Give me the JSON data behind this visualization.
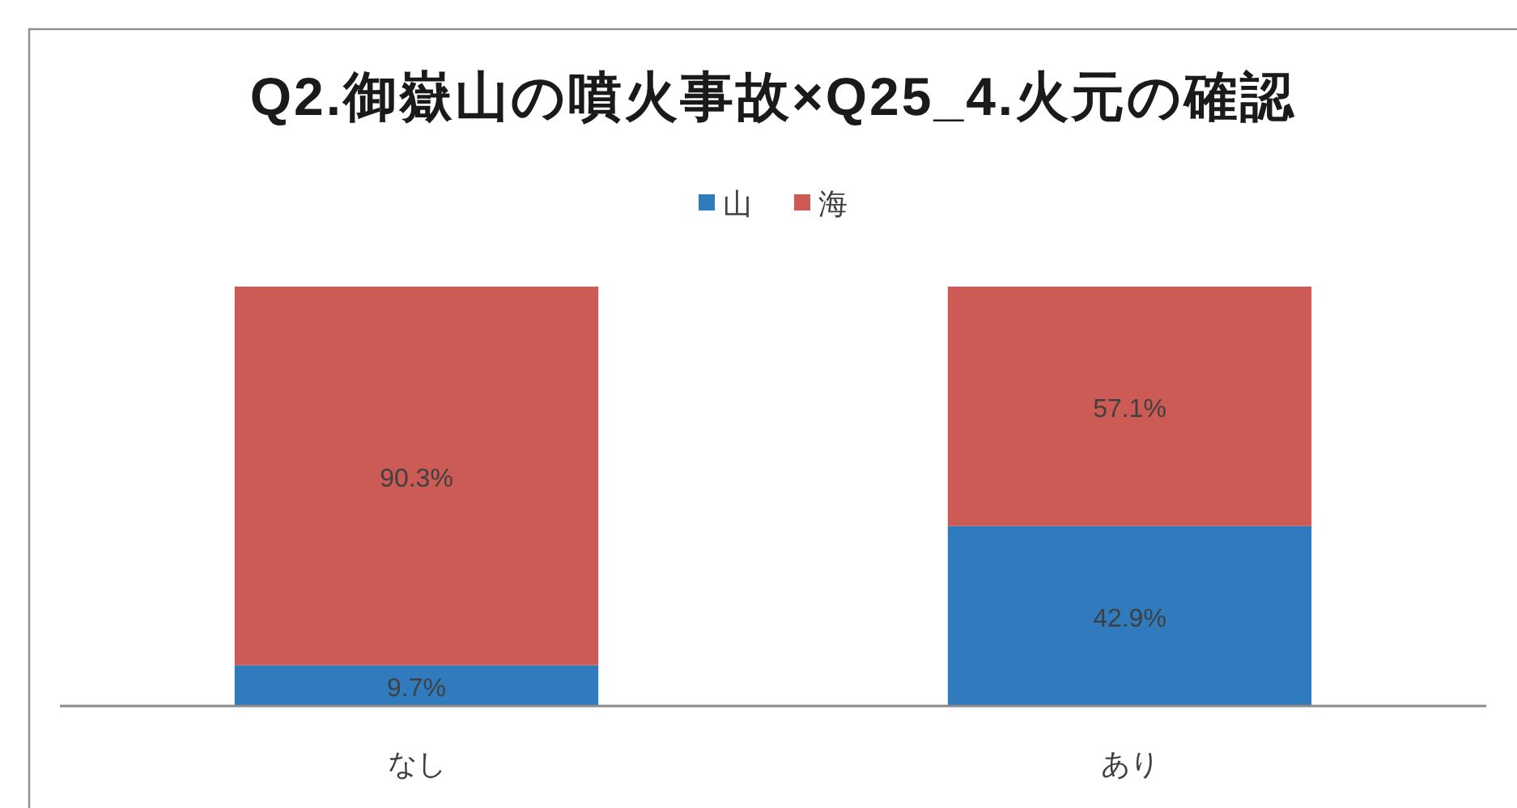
{
  "chart_data": {
    "type": "bar",
    "title": "Q2.御嶽山の噴火事故×Q25_4.火元の確認",
    "categories": [
      "なし",
      "あり"
    ],
    "series": [
      {
        "name": "山",
        "color": "#2f7bbd",
        "values": [
          9.7,
          42.9
        ],
        "value_labels": [
          "9.7%",
          "42.9%"
        ]
      },
      {
        "name": "海",
        "color": "#cc5b55",
        "values": [
          90.3,
          57.1
        ],
        "value_labels": [
          "90.3%",
          "57.1%"
        ]
      }
    ],
    "stacked": true,
    "ylim": [
      0,
      100
    ],
    "legend": "top",
    "tick_labels": "x"
  }
}
